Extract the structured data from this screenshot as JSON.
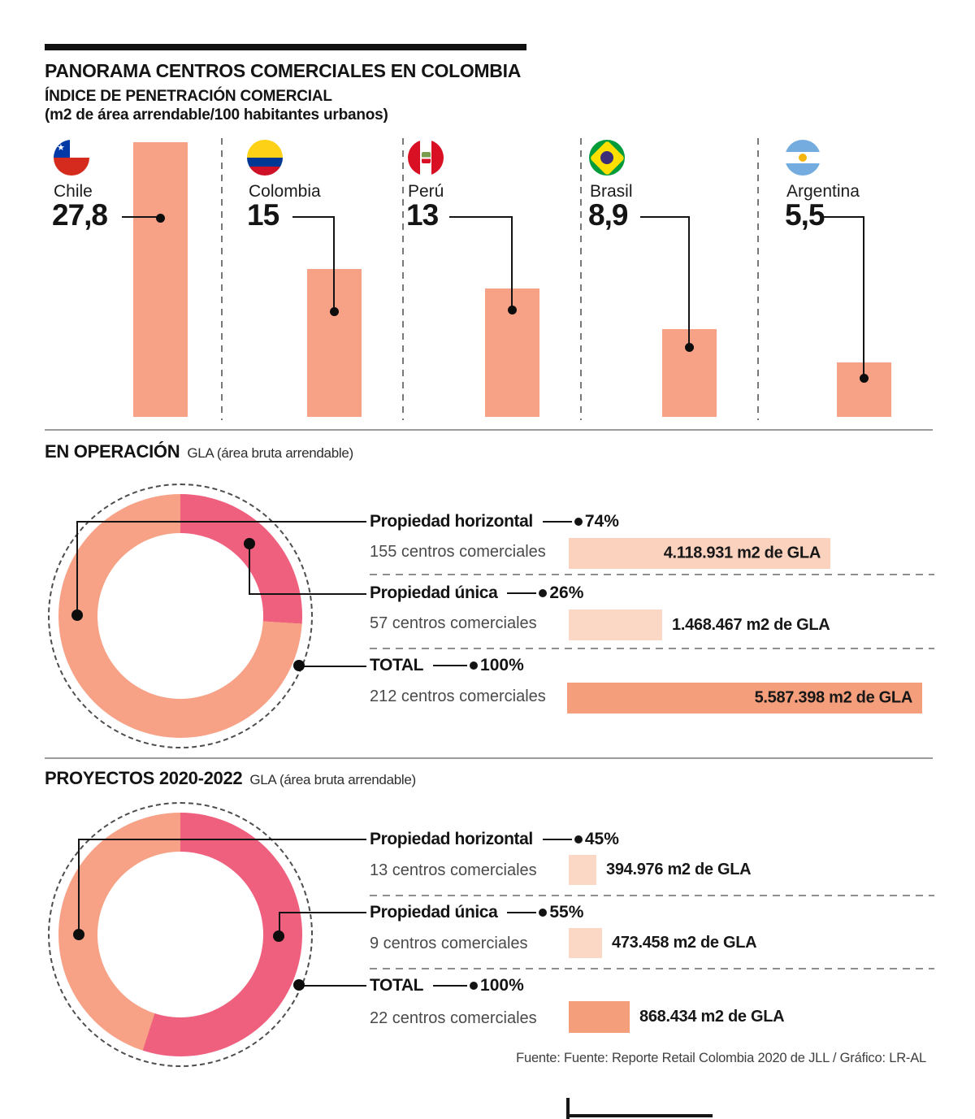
{
  "header": {
    "title": "PANORAMA CENTROS COMERCIALES EN COLOMBIA",
    "subtitle": "ÍNDICE DE PENETRACIÓN COMERCIAL",
    "subtitle2": "(m2 de área arrendable/100 habitantes urbanos)"
  },
  "chart_data": [
    {
      "type": "bar",
      "title": "ÍNDICE DE PENETRACIÓN COMERCIAL",
      "unit_note": "(m2 de área arrendable/100 habitantes urbanos)",
      "categories": [
        "Chile",
        "Colombia",
        "Perú",
        "Brasil",
        "Argentina"
      ],
      "values": [
        27.8,
        15,
        13,
        8.9,
        5.5
      ],
      "value_labels": [
        "27,8",
        "15",
        "13",
        "8,9",
        "5,5"
      ],
      "ylim": [
        0,
        27.8
      ],
      "bar_color": "#F7A287",
      "flag_icons": [
        "chile-flag-icon",
        "colombia-flag-icon",
        "peru-flag-icon",
        "brasil-flag-icon",
        "argentina-flag-icon"
      ]
    },
    {
      "type": "pie",
      "title": "EN OPERACIÓN",
      "subtitle": "GLA (área bruta arrendable)",
      "slices": [
        {
          "label": "Propiedad única",
          "pct": 26,
          "color": "#EF5F7E"
        },
        {
          "label": "Propiedad horizontal",
          "pct": 74,
          "color": "#F7A287"
        }
      ],
      "rows": [
        {
          "label": "Propiedad horizontal",
          "pct_label": "74%",
          "count": "155 centros comerciales",
          "gla": "4.118.931 m2 de GLA",
          "gla_value": 4118931
        },
        {
          "label": "Propiedad única",
          "pct_label": "26%",
          "count": "57 centros comerciales",
          "gla": "1.468.467 m2 de GLA",
          "gla_value": 1468467
        },
        {
          "label": "TOTAL",
          "pct_label": "100%",
          "count": "212 centros comerciales",
          "gla": "5.587.398 m2 de GLA",
          "gla_value": 5587398
        }
      ]
    },
    {
      "type": "pie",
      "title": "PROYECTOS 2020-2022",
      "subtitle": "GLA (área bruta arrendable)",
      "slices": [
        {
          "label": "Propiedad única",
          "pct": 55,
          "color": "#EF5F7E"
        },
        {
          "label": "Propiedad horizontal",
          "pct": 45,
          "color": "#F7A287"
        }
      ],
      "rows": [
        {
          "label": "Propiedad horizontal",
          "pct_label": "45%",
          "count": "13 centros comerciales",
          "gla": "394.976 m2 de GLA",
          "gla_value": 394976
        },
        {
          "label": "Propiedad única",
          "pct_label": "55%",
          "count": "9 centros comerciales",
          "gla": "473.458 m2 de GLA",
          "gla_value": 473458
        },
        {
          "label": "TOTAL",
          "pct_label": "100%",
          "count": "22 centros comerciales",
          "gla": "868.434 m2 de GLA",
          "gla_value": 868434
        }
      ]
    }
  ],
  "footer": {
    "source": "Fuente: Fuente: Reporte Retail Colombia 2020 de JLL / Gráfico: LR-AL"
  }
}
